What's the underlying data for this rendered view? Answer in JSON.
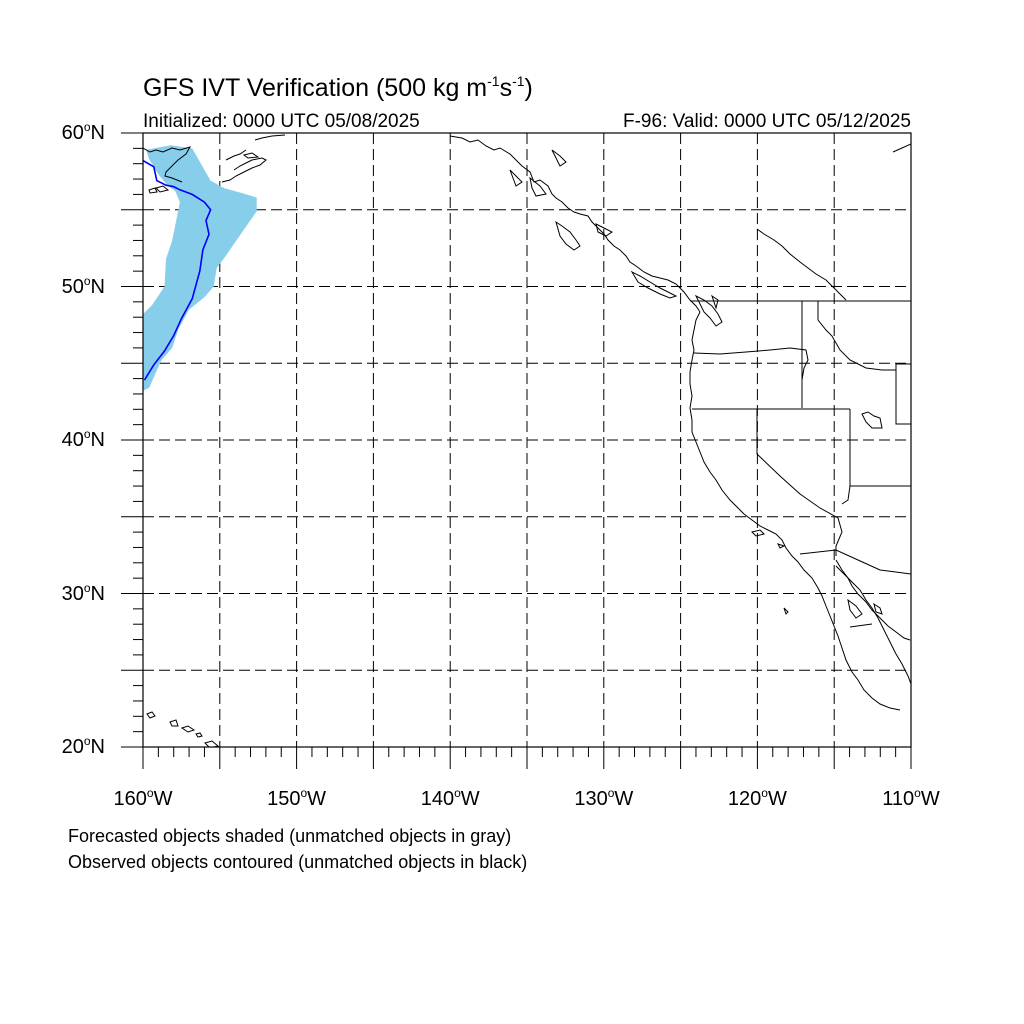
{
  "header": {
    "title_main": "GFS IVT Verification (500 kg m",
    "title_exp1": "-1",
    "title_mid": "s",
    "title_exp2": "-1",
    "title_end": ")",
    "initialized": "Initialized: 0000 UTC 05/08/2025",
    "valid": "F-96: Valid: 0000 UTC 05/12/2025"
  },
  "axes": {
    "lat_labels": [
      {
        "value": 60,
        "text": "60",
        "hemi": "N"
      },
      {
        "value": 50,
        "text": "50",
        "hemi": "N"
      },
      {
        "value": 40,
        "text": "40",
        "hemi": "N"
      },
      {
        "value": 30,
        "text": "30",
        "hemi": "N"
      },
      {
        "value": 20,
        "text": "20",
        "hemi": "N"
      }
    ],
    "lon_labels": [
      {
        "value": -160,
        "text": "160",
        "hemi": "W"
      },
      {
        "value": -150,
        "text": "150",
        "hemi": "W"
      },
      {
        "value": -140,
        "text": "140",
        "hemi": "W"
      },
      {
        "value": -130,
        "text": "130",
        "hemi": "W"
      },
      {
        "value": -120,
        "text": "120",
        "hemi": "W"
      },
      {
        "value": -110,
        "text": "110",
        "hemi": "W"
      }
    ],
    "lat_range": [
      20,
      60
    ],
    "lon_range": [
      -160,
      -110
    ],
    "grid_spacing_deg": 5,
    "grid_style": "dashed",
    "degree_symbol": "o"
  },
  "legend_notes": {
    "line1": "Forecasted objects shaded (unmatched objects in gray)",
    "line2": "Observed objects contoured (unmatched objects in black)"
  },
  "colors": {
    "forecast_fill": "#87ceeb",
    "observed_contour": "#0000ff",
    "coastline": "#000000",
    "grid": "#000000"
  },
  "objects": {
    "forecast_object_lonlat": [
      [
        -160,
        48.2
      ],
      [
        -159.4,
        48.8
      ],
      [
        -158.6,
        50.0
      ],
      [
        -158.5,
        51.8
      ],
      [
        -158.1,
        53.0
      ],
      [
        -157.6,
        55.5
      ],
      [
        -157.9,
        56.2
      ],
      [
        -158.5,
        56.7
      ],
      [
        -159.0,
        57.3
      ],
      [
        -159.6,
        58.3
      ],
      [
        -159.8,
        58.9
      ],
      [
        -158.2,
        59.2
      ],
      [
        -156.8,
        59.0
      ],
      [
        -156.4,
        58.3
      ],
      [
        -155.6,
        56.9
      ],
      [
        -154.7,
        56.4
      ],
      [
        -153.6,
        56.1
      ],
      [
        -152.6,
        55.8
      ],
      [
        -152.6,
        54.9
      ],
      [
        -153.5,
        53.6
      ],
      [
        -154.2,
        52.6
      ],
      [
        -154.6,
        52.0
      ],
      [
        -155.2,
        51.2
      ],
      [
        -155.4,
        50.0
      ],
      [
        -156.0,
        49.3
      ],
      [
        -157.0,
        48.5
      ],
      [
        -157.7,
        47.2
      ],
      [
        -158.1,
        46.0
      ],
      [
        -158.8,
        45.2
      ],
      [
        -159.6,
        43.4
      ],
      [
        -160,
        43.2
      ]
    ],
    "observed_object_lonlat": [
      [
        -159.9,
        43.9
      ],
      [
        -159.3,
        44.9
      ],
      [
        -158.6,
        45.8
      ],
      [
        -158.0,
        46.8
      ],
      [
        -157.5,
        47.9
      ],
      [
        -156.8,
        49.2
      ],
      [
        -156.3,
        51.0
      ],
      [
        -156.1,
        52.4
      ],
      [
        -155.7,
        53.4
      ],
      [
        -155.9,
        54.3
      ],
      [
        -155.6,
        55.0
      ],
      [
        -156.0,
        55.5
      ],
      [
        -156.8,
        56.0
      ],
      [
        -157.6,
        56.3
      ],
      [
        -158.0,
        56.5
      ],
      [
        -158.5,
        56.6
      ],
      [
        -159.1,
        56.9
      ],
      [
        -159.3,
        57.8
      ],
      [
        -160,
        58.2
      ]
    ]
  }
}
